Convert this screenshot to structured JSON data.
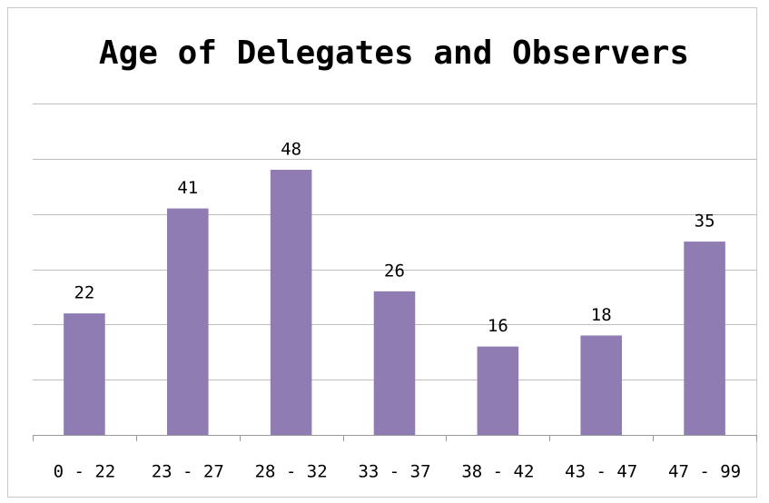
{
  "chart_data": {
    "type": "bar",
    "title": "Age of Delegates and Observers",
    "categories": [
      "0 - 22",
      "23 - 27",
      "28 - 32",
      "33 - 37",
      "38 - 42",
      "43 - 47",
      "47 - 99"
    ],
    "values": [
      22,
      41,
      48,
      26,
      16,
      18,
      35
    ],
    "color": "#8e7cb3",
    "ylim": [
      0,
      60
    ],
    "yticks": [
      0,
      10,
      20,
      30,
      40,
      50,
      60
    ],
    "grid": true
  }
}
